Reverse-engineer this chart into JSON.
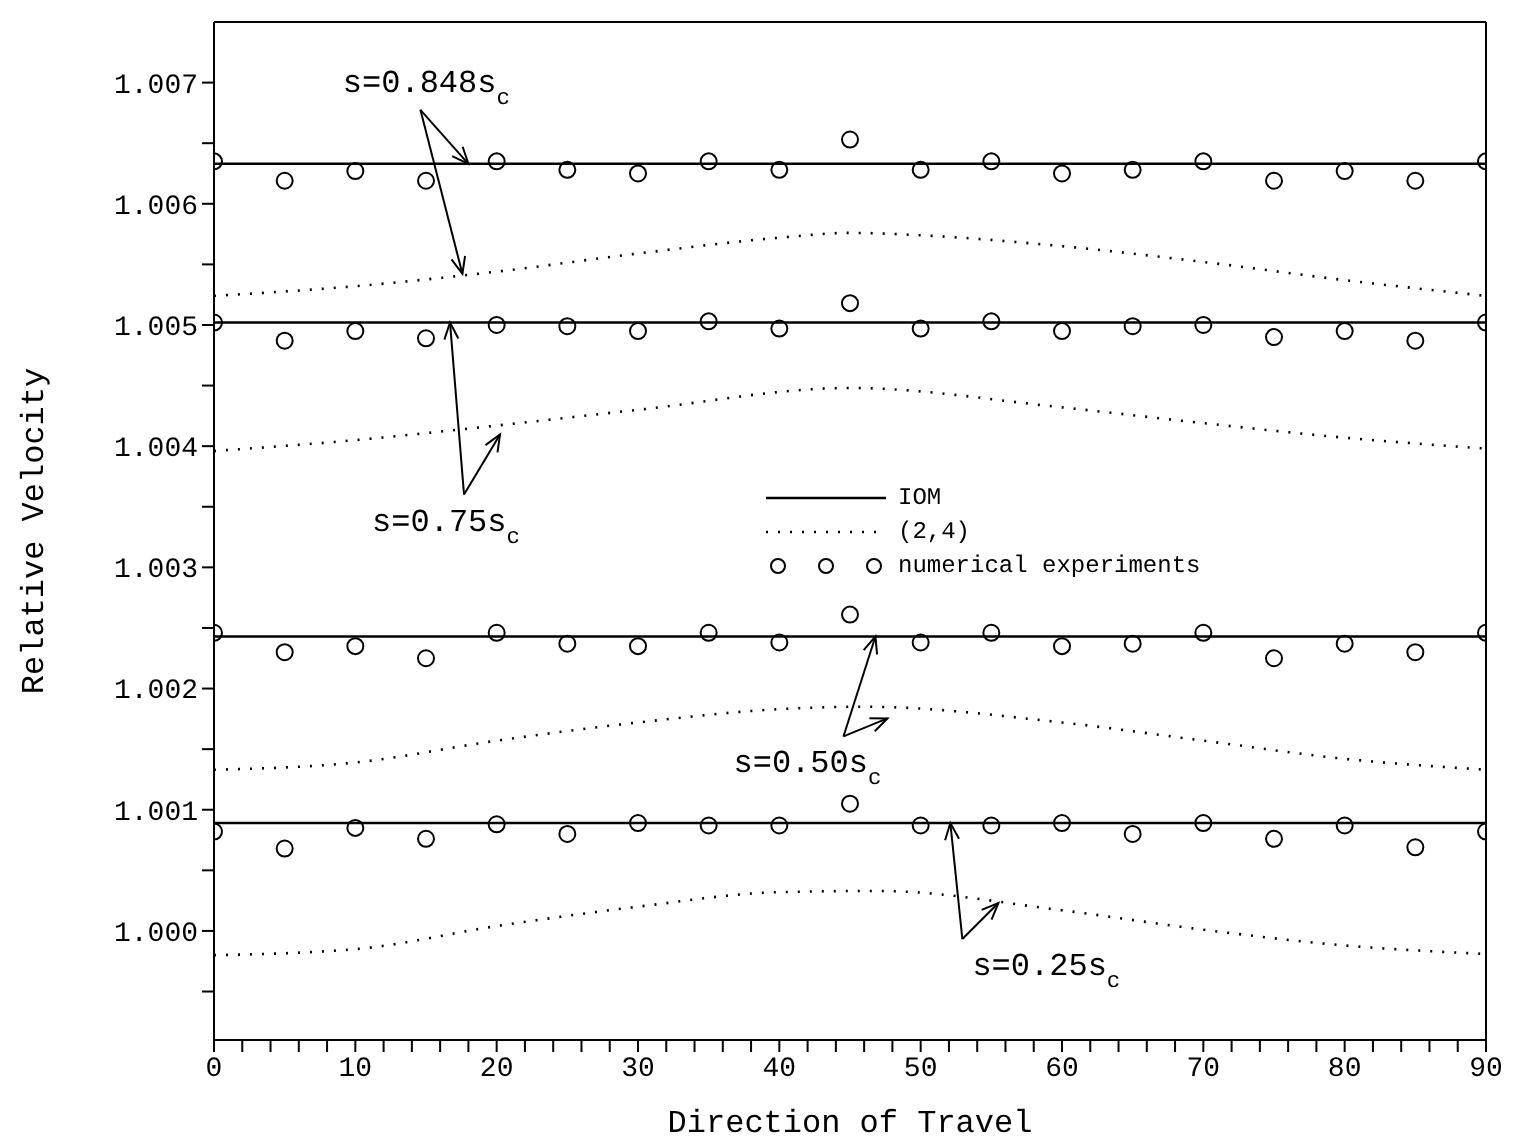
{
  "chart_data": {
    "type": "line",
    "xlabel": "Direction of Travel",
    "ylabel": "Relative Velocity",
    "xlim": [
      0,
      90
    ],
    "xticks": [
      0,
      {
        "value": 2,
        "label": null
      },
      {
        "value": 4,
        "label": null
      },
      {
        "value": 6,
        "label": null
      },
      {
        "value": 8,
        "label": null
      },
      10,
      {
        "value": 12,
        "label": null
      },
      {
        "value": 14,
        "label": null
      },
      {
        "value": 16,
        "label": null
      },
      {
        "value": 18,
        "label": null
      },
      20,
      {
        "value": 22,
        "label": null
      },
      {
        "value": 24,
        "label": null
      },
      {
        "value": 26,
        "label": null
      },
      {
        "value": 28,
        "label": null
      },
      30,
      {
        "value": 32,
        "label": null
      },
      {
        "value": 34,
        "label": null
      },
      {
        "value": 36,
        "label": null
      },
      {
        "value": 38,
        "label": null
      },
      40,
      {
        "value": 42,
        "label": null
      },
      {
        "value": 44,
        "label": null
      },
      {
        "value": 46,
        "label": null
      },
      {
        "value": 48,
        "label": null
      },
      50,
      {
        "value": 52,
        "label": null
      },
      {
        "value": 54,
        "label": null
      },
      {
        "value": 56,
        "label": null
      },
      {
        "value": 58,
        "label": null
      },
      60,
      {
        "value": 62,
        "label": null
      },
      {
        "value": 64,
        "label": null
      },
      {
        "value": 66,
        "label": null
      },
      {
        "value": 68,
        "label": null
      },
      70,
      {
        "value": 72,
        "label": null
      },
      {
        "value": 74,
        "label": null
      },
      {
        "value": 76,
        "label": null
      },
      {
        "value": 78,
        "label": null
      },
      80,
      {
        "value": 82,
        "label": null
      },
      {
        "value": 84,
        "label": null
      },
      {
        "value": 86,
        "label": null
      },
      {
        "value": 88,
        "label": null
      },
      90
    ],
    "ylim": [
      0.9991,
      1.0075
    ],
    "yticks": [
      {
        "value": 0.9995,
        "label": null
      },
      {
        "value": 1,
        "label": "1.000"
      },
      {
        "value": 1.0005,
        "label": null
      },
      1.001,
      {
        "value": 1.0015,
        "label": null
      },
      1.002,
      {
        "value": 1.0025,
        "label": null
      },
      1.003,
      {
        "value": 1.0035,
        "label": null
      },
      1.004,
      {
        "value": 1.0045,
        "label": null
      },
      1.005,
      {
        "value": 1.0055,
        "label": null
      },
      1.006,
      {
        "value": 1.0065,
        "label": null
      },
      1.007
    ],
    "grid": false,
    "legend": "center",
    "series": [
      {
        "name": "IOM",
        "color": "#000000",
        "line_style": "solid",
        "x": [
          0,
          90
        ],
        "values": [
          1.00633,
          1.00633
        ]
      },
      {
        "color": "#000000",
        "line_style": "solid",
        "x": [
          0,
          90
        ],
        "values": [
          1.00502,
          1.00502
        ]
      },
      {
        "color": "#000000",
        "line_style": "solid",
        "x": [
          0,
          90
        ],
        "values": [
          1.00243,
          1.00243
        ]
      },
      {
        "color": "#000000",
        "line_style": "solid",
        "x": [
          0,
          90
        ],
        "values": [
          1.00089,
          1.00089
        ]
      },
      {
        "name": "(2,4)",
        "color": "#000000",
        "line_style": "dotted",
        "x": [
          0,
          10,
          20,
          30,
          40,
          45,
          50,
          60,
          70,
          80,
          90
        ],
        "values": [
          1.00524,
          1.00532,
          1.00544,
          1.00559,
          1.00572,
          1.00576,
          1.00574,
          1.00565,
          1.00552,
          1.00537,
          1.00524
        ]
      },
      {
        "color": "#000000",
        "line_style": "dotted",
        "x": [
          0,
          10,
          20,
          30,
          45,
          60,
          70,
          80,
          90
        ],
        "values": [
          1.00396,
          1.00405,
          1.00417,
          1.0043,
          1.00448,
          1.00432,
          1.00419,
          1.00407,
          1.00398
        ]
      },
      {
        "color": "#000000",
        "line_style": "dotted",
        "x": [
          0,
          10,
          20,
          30,
          40,
          46,
          60,
          70,
          80,
          90
        ],
        "values": [
          1.00133,
          1.00139,
          1.00157,
          1.00172,
          1.00183,
          1.00185,
          1.00172,
          1.00157,
          1.00142,
          1.00133
        ]
      },
      {
        "color": "#000000",
        "line_style": "dotted",
        "x": [
          0,
          10,
          20,
          30,
          40,
          47,
          60,
          70,
          80,
          90
        ],
        "values": [
          0.9998,
          0.99985,
          1.00004,
          1.0002,
          1.00032,
          1.00033,
          1.00017,
          1.00001,
          0.99988,
          0.99981
        ]
      },
      {
        "type": "scatter",
        "name": "numerical experiments",
        "color": "#000000",
        "marker": "circle",
        "x": [
          0,
          5,
          10,
          15,
          20,
          25,
          30,
          35,
          40,
          45,
          50,
          55,
          60,
          65,
          70,
          75,
          80,
          85,
          90
        ],
        "values": [
          1.00635,
          1.00619,
          1.00627,
          1.00619,
          1.00635,
          1.00628,
          1.00625,
          1.00635,
          1.00628,
          1.00653,
          1.00628,
          1.00635,
          1.00625,
          1.00628,
          1.00635,
          1.00619,
          1.00627,
          1.00619,
          1.00635
        ]
      },
      {
        "type": "scatter",
        "color": "#000000",
        "marker": "circle",
        "x": [
          0,
          5,
          10,
          15,
          20,
          25,
          30,
          35,
          40,
          45,
          50,
          55,
          60,
          65,
          70,
          75,
          80,
          85,
          90
        ],
        "values": [
          1.00502,
          1.00487,
          1.00495,
          1.00489,
          1.005,
          1.00499,
          1.00495,
          1.00503,
          1.00497,
          1.00518,
          1.00497,
          1.00503,
          1.00495,
          1.00499,
          1.005,
          1.0049,
          1.00495,
          1.00487,
          1.00502
        ]
      },
      {
        "type": "scatter",
        "color": "#000000",
        "marker": "circle",
        "x": [
          0,
          5,
          10,
          15,
          20,
          25,
          30,
          35,
          40,
          45,
          50,
          55,
          60,
          65,
          70,
          75,
          80,
          85,
          90
        ],
        "values": [
          1.00246,
          1.0023,
          1.00235,
          1.00225,
          1.00246,
          1.00237,
          1.00235,
          1.00246,
          1.00238,
          1.00261,
          1.00238,
          1.00246,
          1.00235,
          1.00237,
          1.00246,
          1.00225,
          1.00237,
          1.0023,
          1.00246
        ]
      },
      {
        "type": "scatter",
        "color": "#000000",
        "marker": "circle",
        "x": [
          0,
          5,
          10,
          15,
          20,
          25,
          30,
          35,
          40,
          45,
          50,
          55,
          60,
          65,
          70,
          75,
          80,
          85,
          90
        ],
        "values": [
          1.00082,
          1.00068,
          1.00085,
          1.00076,
          1.00088,
          1.0008,
          1.00089,
          1.00087,
          1.00087,
          1.00105,
          1.00087,
          1.00087,
          1.00089,
          1.0008,
          1.00089,
          1.00076,
          1.00087,
          1.00069,
          1.00082
        ]
      }
    ],
    "annotations": [
      {
        "text": "s=0.848s$_{c}$",
        "x": 18,
        "y": 1.00633
      },
      {
        "text": "s=0.75s$_{c}$",
        "x": 16.7,
        "y": 1.00502
      },
      {
        "text": "s=0.50s$_{c}$",
        "x": 46.8,
        "y": 1.00243
      },
      {
        "text": "s=0.25s$_{c}$",
        "x": 52.1,
        "y": 1.00089
      }
    ]
  }
}
